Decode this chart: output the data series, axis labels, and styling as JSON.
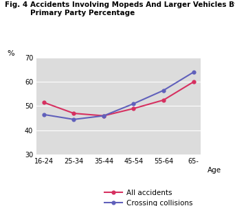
{
  "title_prefix": "Fig. 4",
  "title_line1": "Accidents Involving Mopeds And Larger Vehicles By Driver Age Group,",
  "title_line2": "Primary Party Percentage",
  "categories": [
    "16-24",
    "25-34",
    "35-44",
    "45-54",
    "55-64",
    "65-"
  ],
  "all_accidents": [
    51.5,
    47.0,
    46.0,
    49.0,
    52.5,
    60.0
  ],
  "crossing_collisions": [
    46.5,
    44.5,
    46.0,
    51.0,
    56.5,
    64.0
  ],
  "ylim": [
    30,
    70
  ],
  "yticks": [
    30,
    40,
    50,
    60,
    70
  ],
  "ylabel": "%",
  "xlabel": "Age",
  "color_all": "#d63060",
  "color_crossing": "#6060bb",
  "bg_color": "#dcdcdc",
  "legend_all": "All accidents",
  "legend_crossing": "Crossing collisions",
  "marker": "o",
  "linewidth": 1.5,
  "markersize": 4.5
}
